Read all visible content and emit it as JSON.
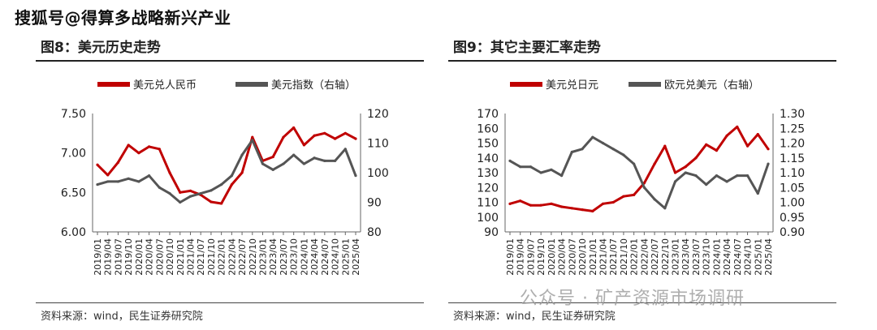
{
  "header": {
    "watermark": "搜狐号@得算多战略新兴产业"
  },
  "footer": {
    "watermark": "公众号 · 矿产资源市场调研"
  },
  "colors": {
    "red": "#c00000",
    "gray": "#555555"
  },
  "panels": [
    {
      "title": "图8：美元历史走势",
      "source": "资料来源：wind，民生证券研究院"
    },
    {
      "title": "图9：其它主要汇率走势",
      "source": "资料来源：wind，民生证券研究院"
    }
  ],
  "chart_data": [
    {
      "type": "line",
      "x_ticks": [
        "2019/01",
        "2019/04",
        "2019/07",
        "2019/10",
        "2020/01",
        "2020/04",
        "2020/07",
        "2020/10",
        "2021/01",
        "2021/04",
        "2021/07",
        "2021/10",
        "2022/01",
        "2022/04",
        "2022/07",
        "2022/10",
        "2023/01",
        "2023/04",
        "2023/07",
        "2023/10",
        "2024/01",
        "2024/04",
        "2024/07",
        "2024/10",
        "2025/01",
        "2025/04"
      ],
      "left_axis": {
        "ylim": [
          6.0,
          7.5
        ],
        "ticks": [
          "6.00",
          "6.50",
          "7.00",
          "7.50"
        ]
      },
      "right_axis": {
        "ylim": [
          80,
          120
        ],
        "ticks": [
          "80",
          "90",
          "100",
          "110",
          "120"
        ]
      },
      "series": [
        {
          "name": "美元兑人民币",
          "axis": "left",
          "color": "#c00000",
          "values": [
            6.85,
            6.72,
            6.88,
            7.1,
            7.0,
            7.08,
            7.05,
            6.75,
            6.5,
            6.52,
            6.47,
            6.38,
            6.36,
            6.6,
            6.75,
            7.2,
            6.9,
            6.95,
            7.2,
            7.32,
            7.1,
            7.22,
            7.25,
            7.18,
            7.25,
            7.18
          ]
        },
        {
          "name": "美元指数（右轴）",
          "axis": "right",
          "color": "#555555",
          "values": [
            96,
            97,
            97,
            98,
            97,
            99,
            95,
            93,
            90,
            92,
            93,
            94,
            96,
            99,
            106,
            111,
            103,
            101,
            103,
            106,
            103,
            105,
            104,
            104,
            108,
            99
          ]
        }
      ]
    },
    {
      "type": "line",
      "x_ticks": [
        "2019/01",
        "2019/04",
        "2019/07",
        "2019/10",
        "2020/01",
        "2020/04",
        "2020/07",
        "2020/10",
        "2021/01",
        "2021/04",
        "2021/07",
        "2021/10",
        "2022/01",
        "2022/04",
        "2022/07",
        "2022/10",
        "2023/01",
        "2023/04",
        "2023/07",
        "2023/10",
        "2024/01",
        "2024/04",
        "2024/07",
        "2024/10",
        "2025/01",
        "2025/04"
      ],
      "left_axis": {
        "ylim": [
          90,
          170
        ],
        "ticks": [
          "90",
          "100",
          "110",
          "120",
          "130",
          "140",
          "150",
          "160",
          "170"
        ]
      },
      "right_axis": {
        "ylim": [
          0.9,
          1.3
        ],
        "ticks": [
          "0.90",
          "0.95",
          "1.00",
          "1.05",
          "1.10",
          "1.15",
          "1.20",
          "1.25",
          "1.30"
        ]
      },
      "series": [
        {
          "name": "美元兑日元",
          "axis": "left",
          "color": "#c00000",
          "values": [
            109,
            111,
            108,
            108,
            109,
            107,
            106,
            105,
            104,
            109,
            110,
            114,
            115,
            123,
            136,
            148,
            130,
            134,
            140,
            149,
            145,
            155,
            161,
            148,
            156,
            146
          ]
        },
        {
          "name": "欧元兑美元（右轴）",
          "axis": "right",
          "color": "#555555",
          "values": [
            1.14,
            1.12,
            1.12,
            1.1,
            1.11,
            1.09,
            1.17,
            1.18,
            1.22,
            1.2,
            1.18,
            1.16,
            1.13,
            1.05,
            1.01,
            0.98,
            1.07,
            1.1,
            1.09,
            1.06,
            1.09,
            1.07,
            1.09,
            1.09,
            1.03,
            1.13
          ]
        }
      ]
    }
  ]
}
